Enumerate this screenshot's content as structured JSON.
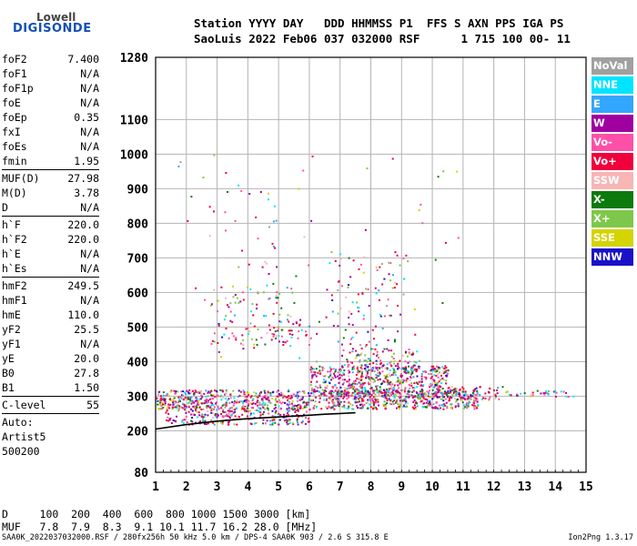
{
  "logo": {
    "top": "Lowell",
    "bottom": "DIGISONDE"
  },
  "header": {
    "line1": "Station YYYY DAY   DDD HHMMSS P1  FFS S AXN PPS IGA PS",
    "line2": "SaoLuis 2022 Feb06 037 032000 RSF      1 715 100 00- 11"
  },
  "params": [
    {
      "label": "foF2",
      "value": "7.400"
    },
    {
      "label": "foF1",
      "value": "N/A"
    },
    {
      "label": "foF1p",
      "value": "N/A"
    },
    {
      "label": "foE",
      "value": "N/A"
    },
    {
      "label": "foEp",
      "value": "0.35"
    },
    {
      "label": "fxI",
      "value": "N/A"
    },
    {
      "label": "foEs",
      "value": "N/A"
    },
    {
      "label": "fmin",
      "value": "1.95"
    },
    {
      "sep": true
    },
    {
      "label": "MUF(D)",
      "value": "27.98"
    },
    {
      "label": "M(D)",
      "value": "3.78"
    },
    {
      "label": "D",
      "value": "N/A"
    },
    {
      "sep": true
    },
    {
      "label": "h`F",
      "value": "220.0"
    },
    {
      "label": "h`F2",
      "value": "220.0"
    },
    {
      "label": "h`E",
      "value": "N/A"
    },
    {
      "label": "h`Es",
      "value": "N/A"
    },
    {
      "sep": true
    },
    {
      "label": "hmF2",
      "value": "249.5"
    },
    {
      "label": "hmF1",
      "value": "N/A"
    },
    {
      "label": "hmE",
      "value": "110.0"
    },
    {
      "label": "yF2",
      "value": "25.5"
    },
    {
      "label": "yF1",
      "value": "N/A"
    },
    {
      "label": "yE",
      "value": "20.0"
    },
    {
      "label": "B0",
      "value": "27.8"
    },
    {
      "label": "B1",
      "value": "1.50"
    },
    {
      "sep": true
    },
    {
      "label": "C-level",
      "value": "55"
    },
    {
      "sep": true
    },
    {
      "text": "Auto:"
    },
    {
      "text": "Artist5"
    },
    {
      "text": "500200"
    }
  ],
  "legend": [
    {
      "label": "NoVal",
      "color": "#a0a0a0"
    },
    {
      "label": "NNE",
      "color": "#00e5ff"
    },
    {
      "label": "E",
      "color": "#33a6ff"
    },
    {
      "label": "W",
      "color": "#a000a0"
    },
    {
      "label": "Vo-",
      "color": "#ff4fa8"
    },
    {
      "label": "Vo+",
      "color": "#f0003c"
    },
    {
      "label": "SSW",
      "color": "#f7b5b5"
    },
    {
      "label": "X-",
      "color": "#0c7a0c"
    },
    {
      "label": "X+",
      "color": "#7dc84a"
    },
    {
      "label": "SSE",
      "color": "#d4d400"
    },
    {
      "label": "NNW",
      "color": "#1a10c8"
    }
  ],
  "dmuf": {
    "d_line": "D     100  200  400  600  800 1000 1500 3000 [km]",
    "muf_line": "MUF   7.8  7.9  8.3  9.1 10.1 11.7 16.2 28.0 [MHz]"
  },
  "footer": "SAA0K_2022037032000.RSF / 280fx256h 50 kHz 5.0 km / DPS-4 SAA0K 903 / 2.6 S 315.8 E",
  "version": "Ion2Png 1.3.17",
  "chart_data": {
    "type": "scatter",
    "xlim": [
      1,
      15
    ],
    "ylim": [
      80,
      1280
    ],
    "x_ticks": [
      1,
      2,
      3,
      4,
      5,
      6,
      7,
      8,
      9,
      10,
      11,
      12,
      13,
      14,
      15
    ],
    "x_tick_labels": [
      "1",
      "2",
      "3",
      "4",
      "5",
      "6",
      "7",
      "8",
      "9",
      "10",
      "11",
      "12",
      "13",
      "14",
      "15"
    ],
    "y_ticks": [
      80,
      200,
      300,
      400,
      500,
      600,
      700,
      800,
      900,
      1000,
      1100,
      1280
    ],
    "y_tick_labels": [
      "80",
      "200",
      "300",
      "400",
      "500",
      "600",
      "700",
      "800",
      "900",
      "1000",
      "1100",
      "1280"
    ],
    "grid": true,
    "trace": {
      "x": [
        1.0,
        2.0,
        3.0,
        4.0,
        5.0,
        6.0,
        6.5,
        7.0,
        7.5
      ],
      "y": [
        205,
        218,
        228,
        235,
        240,
        245,
        248,
        250,
        252
      ]
    },
    "bands": [
      {
        "x": [
          1.0,
          11.5
        ],
        "y": [
          265,
          320
        ],
        "density": 0.55
      },
      {
        "x": [
          1.3,
          6.0
        ],
        "y": [
          220,
          270
        ],
        "density": 0.35
      },
      {
        "x": [
          6.0,
          10.5
        ],
        "y": [
          300,
          390
        ],
        "density": 0.45
      },
      {
        "x": [
          7.0,
          9.5
        ],
        "y": [
          380,
          440
        ],
        "density": 0.2
      },
      {
        "x": [
          10.5,
          12.3
        ],
        "y": [
          290,
          330
        ],
        "density": 0.3
      },
      {
        "x": [
          12.3,
          14.6
        ],
        "y": [
          300,
          318
        ],
        "density": 0.25
      },
      {
        "x": [
          2.7,
          5.5
        ],
        "y": [
          440,
          620
        ],
        "density": 0.06
      },
      {
        "x": [
          4.0,
          5.0
        ],
        "y": [
          600,
          900
        ],
        "density": 0.02
      },
      {
        "x": [
          6.5,
          9.2
        ],
        "y": [
          450,
          720
        ],
        "density": 0.04
      },
      {
        "x": [
          1.5,
          11.0
        ],
        "y": [
          320,
          1000
        ],
        "density": 0.004
      },
      {
        "x": [
          4.5,
          6.3
        ],
        "y": [
          470,
          520
        ],
        "density": 0.12
      }
    ]
  }
}
